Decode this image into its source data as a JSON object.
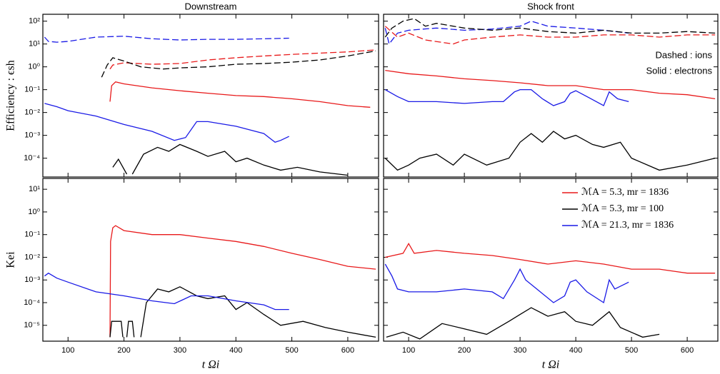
{
  "chart_data": [
    {
      "type": "line",
      "title": "Downstream",
      "ylabel": "Efficiency : ϵsh",
      "log_y": true,
      "xlim": [
        55,
        655
      ],
      "xticks": [
        100,
        200,
        300,
        400,
        500,
        600
      ],
      "ylim": [
        1.5e-05,
        200
      ],
      "yticks": [
        {
          "value": 0.0001,
          "label": "10⁻⁴"
        },
        {
          "value": 0.001,
          "label": "10⁻³"
        },
        {
          "value": 0.01,
          "label": "10⁻²"
        },
        {
          "value": 0.1,
          "label": "10⁻¹"
        },
        {
          "value": 1,
          "label": "10⁰"
        },
        {
          "value": 10,
          "label": "10¹"
        },
        {
          "value": 100,
          "label": "10²"
        }
      ],
      "series": [
        {
          "color": "#1a1ae6",
          "style": "dashed",
          "x": [
            58,
            65,
            80,
            100,
            150,
            200,
            250,
            300,
            350,
            400,
            450,
            495
          ],
          "values": [
            20,
            13,
            12,
            13,
            20,
            22,
            17,
            15,
            16,
            16,
            17,
            18
          ]
        },
        {
          "color": "#e8191a",
          "style": "dashed",
          "x": [
            175,
            180,
            200,
            250,
            300,
            350,
            400,
            450,
            500,
            550,
            600,
            650
          ],
          "values": [
            0.8,
            1.2,
            1.5,
            1.3,
            1.4,
            2,
            2.5,
            3,
            3.5,
            4,
            4.5,
            5.5
          ]
        },
        {
          "color": "#000000",
          "style": "dashed",
          "x": [
            160,
            170,
            180,
            200,
            230,
            270,
            300,
            350,
            400,
            450,
            500,
            550,
            600,
            650
          ],
          "values": [
            0.35,
            1.2,
            2.5,
            1.8,
            1,
            0.8,
            0.9,
            1,
            1.3,
            1.4,
            1.6,
            2,
            3,
            5
          ]
        },
        {
          "color": "#e8191a",
          "style": "solid",
          "x": [
            175,
            178,
            185,
            200,
            250,
            300,
            350,
            400,
            450,
            500,
            550,
            600,
            640
          ],
          "values": [
            0.03,
            0.15,
            0.22,
            0.18,
            0.12,
            0.09,
            0.07,
            0.055,
            0.05,
            0.04,
            0.03,
            0.02,
            0.017
          ]
        },
        {
          "color": "#1a1ae6",
          "style": "solid",
          "x": [
            58,
            80,
            100,
            150,
            200,
            250,
            290,
            310,
            330,
            350,
            400,
            450,
            470,
            480,
            495
          ],
          "values": [
            0.025,
            0.018,
            0.012,
            0.007,
            0.003,
            0.0015,
            0.0006,
            0.0008,
            0.004,
            0.004,
            0.0025,
            0.0012,
            0.0005,
            0.0006,
            0.0009
          ]
        },
        {
          "color": "#000000",
          "style": "solid",
          "x": [
            180,
            190,
            205,
            210,
            215,
            235,
            260,
            280,
            300,
            330,
            350,
            380,
            400,
            420,
            450,
            480,
            510,
            550,
            600
          ],
          "values": [
            4e-05,
            9e-05,
            2e-05,
            null,
            2e-05,
            0.00015,
            0.0003,
            0.0002,
            0.0004,
            0.0002,
            0.00012,
            0.0002,
            7e-05,
            0.0001,
            5e-05,
            3e-05,
            4e-05,
            2.5e-05,
            1.8e-05
          ]
        }
      ]
    },
    {
      "type": "line",
      "title": "Shock front",
      "log_y": true,
      "annotations": [
        "Dashed : ions",
        "Solid : electrons"
      ],
      "xlim": [
        55,
        655
      ],
      "xticks": [
        100,
        200,
        300,
        400,
        500,
        600
      ],
      "ylim": [
        1.5e-05,
        200
      ],
      "yticks": [
        0.0001,
        0.001,
        0.01,
        0.1,
        1,
        10,
        100
      ],
      "series": [
        {
          "color": "#1a1ae6",
          "style": "dashed",
          "x": [
            58,
            65,
            80,
            100,
            150,
            200,
            250,
            300,
            320,
            350,
            400,
            450,
            495
          ],
          "values": [
            50,
            10,
            30,
            40,
            50,
            40,
            45,
            60,
            100,
            60,
            50,
            40,
            30
          ]
        },
        {
          "color": "#000000",
          "style": "dashed",
          "x": [
            58,
            70,
            90,
            110,
            130,
            150,
            200,
            250,
            300,
            350,
            400,
            450,
            500,
            550,
            600,
            650
          ],
          "values": [
            20,
            50,
            100,
            130,
            60,
            80,
            50,
            40,
            50,
            35,
            30,
            40,
            30,
            30,
            35,
            30
          ]
        },
        {
          "color": "#e8191a",
          "style": "dashed",
          "x": [
            58,
            80,
            100,
            130,
            180,
            200,
            250,
            300,
            350,
            400,
            450,
            500,
            550,
            600,
            650
          ],
          "values": [
            60,
            20,
            30,
            15,
            10,
            15,
            20,
            25,
            20,
            20,
            25,
            25,
            20,
            25,
            25
          ]
        },
        {
          "color": "#e8191a",
          "style": "solid",
          "x": [
            58,
            100,
            150,
            200,
            250,
            300,
            350,
            400,
            450,
            500,
            550,
            600,
            650
          ],
          "values": [
            0.7,
            0.5,
            0.4,
            0.3,
            0.25,
            0.2,
            0.15,
            0.15,
            0.1,
            0.1,
            0.07,
            0.06,
            0.04
          ]
        },
        {
          "color": "#1a1ae6",
          "style": "solid",
          "x": [
            58,
            80,
            100,
            150,
            200,
            250,
            270,
            290,
            300,
            320,
            340,
            360,
            380,
            390,
            400,
            420,
            450,
            460,
            475,
            495
          ],
          "values": [
            0.1,
            0.05,
            0.03,
            0.03,
            0.025,
            0.03,
            0.03,
            0.08,
            0.1,
            0.1,
            0.04,
            0.02,
            0.03,
            0.07,
            0.09,
            0.05,
            0.02,
            0.08,
            0.04,
            0.03
          ]
        },
        {
          "color": "#000000",
          "style": "solid",
          "x": [
            58,
            80,
            100,
            120,
            150,
            180,
            200,
            240,
            280,
            300,
            320,
            340,
            360,
            380,
            400,
            430,
            450,
            480,
            500,
            550,
            600,
            650
          ],
          "values": [
            0.0001,
            3e-05,
            5e-05,
            0.0001,
            0.00015,
            5e-05,
            0.00015,
            5e-05,
            0.0001,
            0.0005,
            0.0012,
            0.0005,
            0.0015,
            0.0007,
            0.001,
            0.0004,
            0.0003,
            0.0005,
            0.0001,
            3e-05,
            5e-05,
            0.0001
          ]
        }
      ]
    },
    {
      "type": "line",
      "ylabel": "Kei",
      "xlabel": "t Ωi",
      "log_y": true,
      "xlim": [
        55,
        655
      ],
      "xticks": [
        100,
        200,
        300,
        400,
        500,
        600
      ],
      "ylim": [
        2e-06,
        30
      ],
      "yticks": [
        {
          "value": 1e-05,
          "label": "10⁻⁵"
        },
        {
          "value": 0.0001,
          "label": "10⁻⁴"
        },
        {
          "value": 0.001,
          "label": "10⁻³"
        },
        {
          "value": 0.01,
          "label": "10⁻²"
        },
        {
          "value": 0.1,
          "label": "10⁻¹"
        },
        {
          "value": 1,
          "label": "10⁰"
        },
        {
          "value": 10,
          "label": "10¹"
        }
      ],
      "series": [
        {
          "color": "#e8191a",
          "style": "solid",
          "x": [
            175,
            176,
            180,
            185,
            200,
            250,
            300,
            350,
            400,
            450,
            500,
            550,
            600,
            650
          ],
          "values": [
            3e-06,
            0.05,
            0.2,
            0.25,
            0.15,
            0.1,
            0.1,
            0.07,
            0.05,
            0.03,
            0.015,
            0.008,
            0.004,
            0.003
          ]
        },
        {
          "color": "#000000",
          "style": "solid",
          "x": [
            175,
            178,
            195,
            198,
            200,
            205,
            208,
            215,
            218,
            222,
            230,
            240,
            260,
            280,
            300,
            330,
            350,
            380,
            400,
            420,
            450,
            480,
            520,
            560,
            600,
            650
          ],
          "values": [
            3e-06,
            1.5e-05,
            1.5e-05,
            3e-06,
            null,
            3e-06,
            1.5e-05,
            1.5e-05,
            3e-06,
            null,
            3e-06,
            0.0001,
            0.0004,
            0.0003,
            0.0005,
            0.0002,
            0.00015,
            0.0002,
            5e-05,
            0.0001,
            3e-05,
            1e-05,
            1.5e-05,
            8e-06,
            5e-06,
            3e-06
          ]
        },
        {
          "color": "#1a1ae6",
          "style": "solid",
          "x": [
            58,
            65,
            80,
            100,
            150,
            200,
            250,
            290,
            320,
            350,
            400,
            450,
            470,
            495
          ],
          "values": [
            0.0015,
            0.002,
            0.0012,
            0.0008,
            0.0003,
            0.0002,
            0.00012,
            9e-05,
            0.0002,
            0.0002,
            0.00012,
            8e-05,
            5e-05,
            5e-05
          ]
        }
      ]
    },
    {
      "type": "line",
      "xlabel": "t Ωi",
      "log_y": true,
      "legend": "upper right",
      "xlim": [
        55,
        655
      ],
      "xticks": [
        100,
        200,
        300,
        400,
        500,
        600
      ],
      "ylim": [
        2e-06,
        30
      ],
      "yticks": [
        1e-05,
        0.0001,
        0.001,
        0.01,
        0.1,
        1,
        10
      ],
      "series": [
        {
          "name": "ℳA =   5.3, mr = 1836",
          "color": "#e8191a",
          "style": "solid",
          "x": [
            58,
            90,
            100,
            110,
            150,
            200,
            250,
            300,
            350,
            400,
            450,
            500,
            550,
            600,
            650
          ],
          "values": [
            0.01,
            0.015,
            0.04,
            0.015,
            0.02,
            0.015,
            0.012,
            0.008,
            0.005,
            0.007,
            0.005,
            0.003,
            0.003,
            0.002,
            0.002
          ]
        },
        {
          "name": "ℳA =   5.3, mr = 100",
          "color": "#000000",
          "style": "solid",
          "x": [
            60,
            90,
            120,
            160,
            200,
            240,
            280,
            300,
            320,
            350,
            380,
            400,
            430,
            460,
            480,
            520,
            550
          ],
          "values": [
            3e-06,
            5e-06,
            2.5e-06,
            1.2e-05,
            7e-06,
            4e-06,
            1.5e-05,
            3e-05,
            6e-05,
            2.5e-05,
            4e-05,
            1.5e-05,
            1e-05,
            4e-05,
            8e-06,
            3e-06,
            4e-06
          ]
        },
        {
          "name": "ℳA = 21.3, mr = 1836",
          "color": "#1a1ae6",
          "style": "solid",
          "x": [
            58,
            70,
            80,
            100,
            150,
            200,
            250,
            270,
            290,
            300,
            310,
            330,
            360,
            380,
            390,
            400,
            420,
            450,
            460,
            470,
            495
          ],
          "values": [
            0.005,
            0.0015,
            0.0004,
            0.0003,
            0.0003,
            0.0004,
            0.0003,
            0.00015,
            0.001,
            0.003,
            0.001,
            0.0004,
            0.0001,
            0.0002,
            0.0008,
            0.001,
            0.0003,
            0.0001,
            0.001,
            0.0004,
            0.0008
          ]
        }
      ]
    }
  ]
}
